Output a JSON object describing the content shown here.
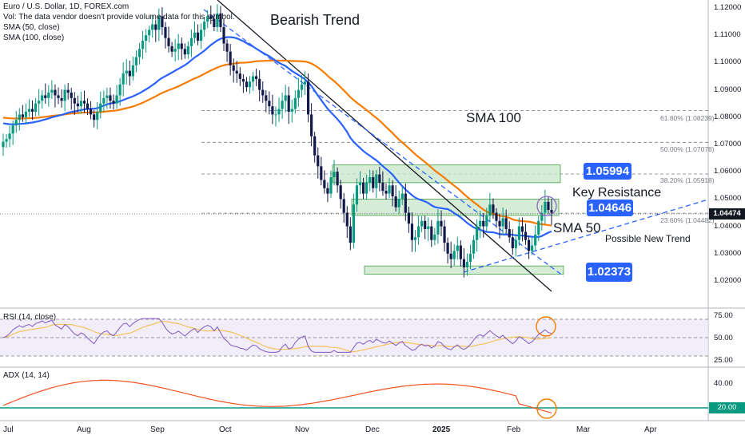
{
  "header": {
    "title": "Euro / U.S. Dollar, 1D, FOREX.com",
    "vol_note": "Vol: The data vendor doesn't provide volume data for this symbol.",
    "sma50_label": "SMA (50, close)",
    "sma100_label": "SMA (100, close)"
  },
  "annotations": {
    "bearish_trend": "Bearish Trend",
    "sma100": "SMA 100",
    "key_resistance": "Key Resistance",
    "sma50": "SMA 50",
    "possible_new_trend": "Possible New Trend"
  },
  "price_tags": {
    "upper": "1.05994",
    "middle": "1.04646",
    "lower": "1.02373"
  },
  "fib_labels": {
    "f618": "61.80% (1.08239)",
    "f500": "50.00% (1.07078)",
    "f382": "38.20% (1.05918)",
    "f236": "23.60% (1.04482)"
  },
  "last_price": "1.04474",
  "price_axis": [
    "1.12000",
    "1.11000",
    "1.10000",
    "1.09000",
    "1.08000",
    "1.07000",
    "1.06000",
    "1.05000",
    "1.04000",
    "1.03000",
    "1.02000"
  ],
  "rsi": {
    "label": "RSI (14, close)",
    "ticks": [
      "75.00",
      "50.00",
      "25.00"
    ]
  },
  "adx": {
    "label": "ADX (14, 14)",
    "ticks": [
      "40.00"
    ],
    "level_tag": "20.00"
  },
  "time_axis": [
    {
      "label": "Jul",
      "bold": false
    },
    {
      "label": "Aug",
      "bold": false
    },
    {
      "label": "Sep",
      "bold": false
    },
    {
      "label": "Oct",
      "bold": false
    },
    {
      "label": "Nov",
      "bold": false
    },
    {
      "label": "Dec",
      "bold": false
    },
    {
      "label": "2025",
      "bold": true
    },
    {
      "label": "Feb",
      "bold": false
    },
    {
      "label": "Mar",
      "bold": false
    },
    {
      "label": "Apr",
      "bold": false
    }
  ],
  "colors": {
    "up": "#089981",
    "down": "#131a4a",
    "sma50": "#2962ff",
    "sma100": "#f57c00",
    "zone_fill": "#c8e6c9",
    "zone_border": "#43a047",
    "rsi_line": "#7e57c2",
    "rsi_ma": "#f5c15a",
    "adx_line": "#f4511e",
    "adx_level": "#089981",
    "tag": "#2962ff",
    "circle_purple": "#8e6bbf",
    "circle_orange": "#f57c00"
  },
  "chart_data": {
    "type": "candlestick",
    "symbol": "Euro / U.S. Dollar",
    "timeframe": "1D",
    "y_range": [
      1.015,
      1.122
    ],
    "closes": [
      1.071,
      1.072,
      1.074,
      1.077,
      1.079,
      1.081,
      1.08,
      1.082,
      1.083,
      1.082,
      1.085,
      1.086,
      1.088,
      1.087,
      1.089,
      1.09,
      1.088,
      1.087,
      1.086,
      1.09,
      1.089,
      1.087,
      1.085,
      1.084,
      1.086,
      1.085,
      1.083,
      1.081,
      1.079,
      1.082,
      1.085,
      1.087,
      1.088,
      1.086,
      1.085,
      1.088,
      1.092,
      1.096,
      1.097,
      1.095,
      1.099,
      1.102,
      1.105,
      1.108,
      1.11,
      1.112,
      1.114,
      1.112,
      1.117,
      1.113,
      1.109,
      1.106,
      1.104,
      1.105,
      1.107,
      1.105,
      1.103,
      1.106,
      1.109,
      1.111,
      1.108,
      1.112,
      1.115,
      1.117,
      1.116,
      1.113,
      1.118,
      1.113,
      1.107,
      1.104,
      1.099,
      1.097,
      1.096,
      1.094,
      1.093,
      1.091,
      1.093,
      1.095,
      1.094,
      1.09,
      1.088,
      1.086,
      1.084,
      1.081,
      1.081,
      1.083,
      1.086,
      1.088,
      1.082,
      1.083,
      1.087,
      1.09,
      1.092,
      1.093,
      1.081,
      1.073,
      1.066,
      1.062,
      1.057,
      1.054,
      1.052,
      1.058,
      1.06,
      1.055,
      1.05,
      1.045,
      1.04,
      1.034,
      1.048,
      1.055,
      1.056,
      1.052,
      1.056,
      1.058,
      1.054,
      1.059,
      1.056,
      1.053,
      1.052,
      1.055,
      1.051,
      1.047,
      1.05,
      1.052,
      1.045,
      1.041,
      1.035,
      1.036,
      1.04,
      1.042,
      1.039,
      1.04,
      1.035,
      1.037,
      1.042,
      1.04,
      1.034,
      1.03,
      1.028,
      1.031,
      1.033,
      1.028,
      1.025,
      1.027,
      1.03,
      1.035,
      1.04,
      1.042,
      1.04,
      1.044,
      1.048,
      1.045,
      1.042,
      1.04,
      1.043,
      1.039,
      1.036,
      1.032,
      1.035,
      1.04,
      1.038,
      1.035,
      1.031,
      1.033,
      1.037,
      1.042,
      1.045,
      1.049,
      1.046,
      1.045
    ],
    "fib_levels": [
      {
        "label": "61.80%",
        "value": 1.08239
      },
      {
        "label": "50.00%",
        "value": 1.07078
      },
      {
        "label": "38.20%",
        "value": 1.05918
      },
      {
        "label": "23.60%",
        "value": 1.04482
      }
    ],
    "zones": [
      {
        "low": 1.056,
        "high": 1.0625,
        "tag": 1.05994
      },
      {
        "low": 1.044,
        "high": 1.05,
        "tag": 1.04646
      },
      {
        "low": 1.0225,
        "high": 1.0255,
        "tag": 1.02373
      }
    ],
    "last_price": 1.04474,
    "rsi": {
      "range": [
        25,
        80
      ],
      "ticks": [
        75,
        50,
        25
      ],
      "last": 58
    },
    "adx": {
      "range": [
        15,
        52
      ],
      "ticks": [
        40
      ],
      "level": 20
    }
  }
}
